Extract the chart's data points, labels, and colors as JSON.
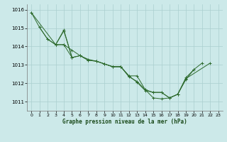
{
  "title": "Graphe pression niveau de la mer (hPa)",
  "xlabel": "Graphe pression niveau de la mer (hPa)",
  "xlim": [
    -0.5,
    23.5
  ],
  "ylim": [
    1010.5,
    1016.3
  ],
  "yticks": [
    1011,
    1012,
    1013,
    1014,
    1015,
    1016
  ],
  "xticks": [
    0,
    1,
    2,
    3,
    4,
    5,
    6,
    7,
    8,
    9,
    10,
    11,
    12,
    13,
    14,
    15,
    16,
    17,
    18,
    19,
    20,
    21,
    22,
    23
  ],
  "bg_color": "#cce9e9",
  "grid_color": "#aacfcf",
  "line_color": "#2d6a2d",
  "series": [
    {
      "x": [
        0,
        1,
        2,
        3,
        4,
        5,
        6,
        7,
        8,
        9,
        10,
        11,
        12,
        13,
        14,
        15,
        16,
        17,
        18,
        19,
        20,
        21
      ],
      "y": [
        1015.85,
        1015.05,
        1014.4,
        1014.1,
        1014.85,
        1013.4,
        1013.5,
        1013.25,
        1013.2,
        1013.05,
        1012.9,
        1012.9,
        1012.4,
        1012.4,
        1011.65,
        1011.2,
        1011.15,
        1011.2,
        1011.4,
        1012.2,
        1012.75,
        1013.1
      ]
    },
    {
      "x": [
        3,
        4,
        5,
        6,
        7,
        8,
        9,
        10,
        11,
        12,
        13,
        14,
        15,
        16,
        17,
        18,
        19,
        20
      ],
      "y": [
        1014.1,
        1014.1,
        1013.8,
        1013.5,
        1013.25,
        1013.2,
        1013.05,
        1012.9,
        1012.9,
        1012.4,
        1012.05,
        1011.6,
        1011.5,
        1011.5,
        1011.2,
        1011.4,
        1012.3,
        1012.75
      ]
    },
    {
      "x": [
        0,
        3,
        4,
        5
      ],
      "y": [
        1015.85,
        1014.1,
        1014.9,
        1013.4
      ]
    },
    {
      "x": [
        1,
        2,
        3,
        4,
        5,
        6,
        7,
        8,
        9,
        10,
        11,
        12,
        13,
        14,
        15,
        16,
        17,
        18,
        19,
        22
      ],
      "y": [
        1015.05,
        1014.4,
        1014.1,
        1014.1,
        1013.4,
        1013.5,
        1013.3,
        1013.2,
        1013.05,
        1012.9,
        1012.9,
        1012.35,
        1012.1,
        1011.65,
        1011.5,
        1011.5,
        1011.2,
        1011.4,
        1012.25,
        1013.1
      ]
    }
  ]
}
